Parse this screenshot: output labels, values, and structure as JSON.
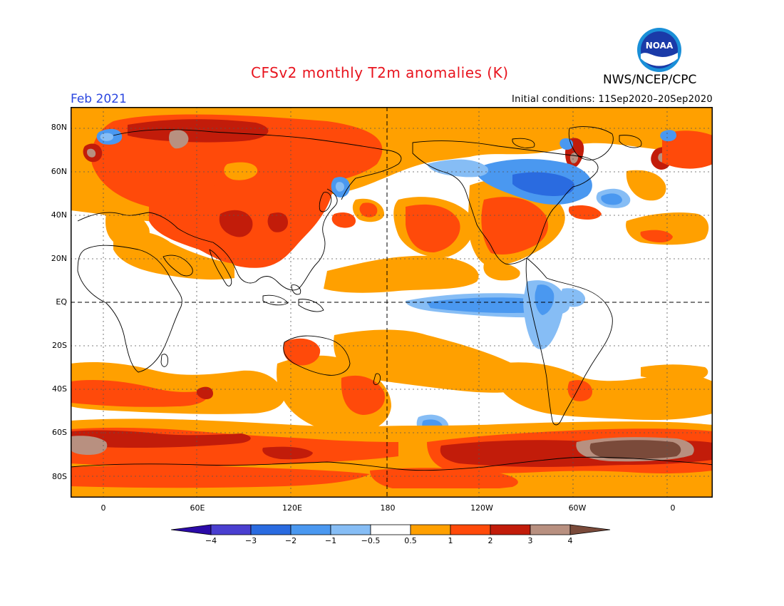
{
  "title": "CFSv2 monthly T2m anomalies (K)",
  "valid_month": "Feb 2021",
  "initial_conditions": "Initial conditions: 11Sep2020–20Sep2020",
  "agency": "NWS/NCEP/CPC",
  "logo_text": "NOAA",
  "map": {
    "projection": "cylindrical equidistant",
    "reference_lines": [
      "EQ",
      "180"
    ],
    "y_ticks": [
      "80N",
      "60N",
      "40N",
      "20N",
      "EQ",
      "20S",
      "40S",
      "60S",
      "80S"
    ],
    "x_ticks": [
      "0",
      "60E",
      "120E",
      "180",
      "120W",
      "60W",
      "0"
    ]
  },
  "colors": {
    "title": "#e8141e",
    "month": "#2a46e0",
    "ocean_neutral": "#ffffff",
    "land_outline": "#000000"
  },
  "legend": {
    "labels": [
      "−4",
      "−3",
      "−2",
      "−1",
      "−0.5",
      "0.5",
      "1",
      "2",
      "3",
      "4"
    ],
    "colors": [
      "#2b0aa8",
      "#4a3fd0",
      "#2a6be0",
      "#4a98f0",
      "#86bdf5",
      "#ffffff",
      "#ffa000",
      "#ff4a0a",
      "#c21c0a",
      "#b89080",
      "#7a4a3a"
    ]
  }
}
